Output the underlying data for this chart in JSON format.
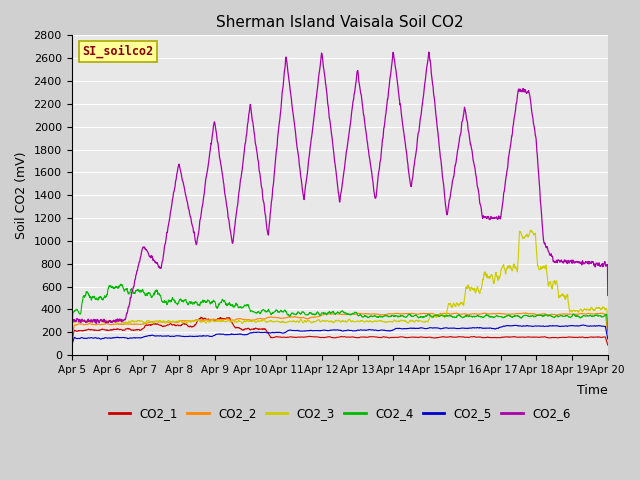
{
  "title": "Sherman Island Vaisala Soil CO2",
  "ylabel": "Soil CO2 (mV)",
  "xlabel": "Time",
  "legend_label": "SI_soilco2",
  "ylim": [
    0,
    2800
  ],
  "series_colors": {
    "CO2_1": "#cc0000",
    "CO2_2": "#ff8800",
    "CO2_3": "#cccc00",
    "CO2_4": "#00bb00",
    "CO2_5": "#0000cc",
    "CO2_6": "#aa00aa"
  },
  "x_tick_labels": [
    "Apr 5",
    "Apr 6",
    "Apr 7",
    "Apr 8",
    "Apr 9",
    "Apr 10",
    "Apr 11",
    "Apr 12",
    "Apr 13",
    "Apr 14",
    "Apr 15",
    "Apr 16",
    "Apr 17",
    "Apr 18",
    "Apr 19",
    "Apr 20"
  ],
  "background_color": "#e8e8e8",
  "plot_bg_color": "#e8e8e8",
  "fig_width": 6.4,
  "fig_height": 4.8,
  "dpi": 100
}
